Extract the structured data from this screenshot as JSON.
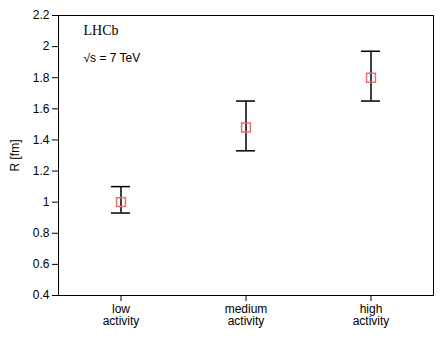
{
  "chart_data": {
    "type": "scatter",
    "categories": [
      "low\nactivity",
      "medium\nactivity",
      "high\nactivity"
    ],
    "values": [
      1.0,
      1.48,
      1.8
    ],
    "err_low": [
      0.07,
      0.15,
      0.15
    ],
    "err_high": [
      0.1,
      0.17,
      0.17
    ],
    "color": "#e87070",
    "marker": "square",
    "ylabel": "R [fm]",
    "ylim": [
      0.4,
      2.2
    ],
    "yticks": [
      0.4,
      0.6,
      0.8,
      1.0,
      1.2,
      1.4,
      1.6,
      1.8,
      2.0,
      2.2
    ],
    "annotations": [
      "LHCb",
      "√s = 7 TeV"
    ]
  }
}
